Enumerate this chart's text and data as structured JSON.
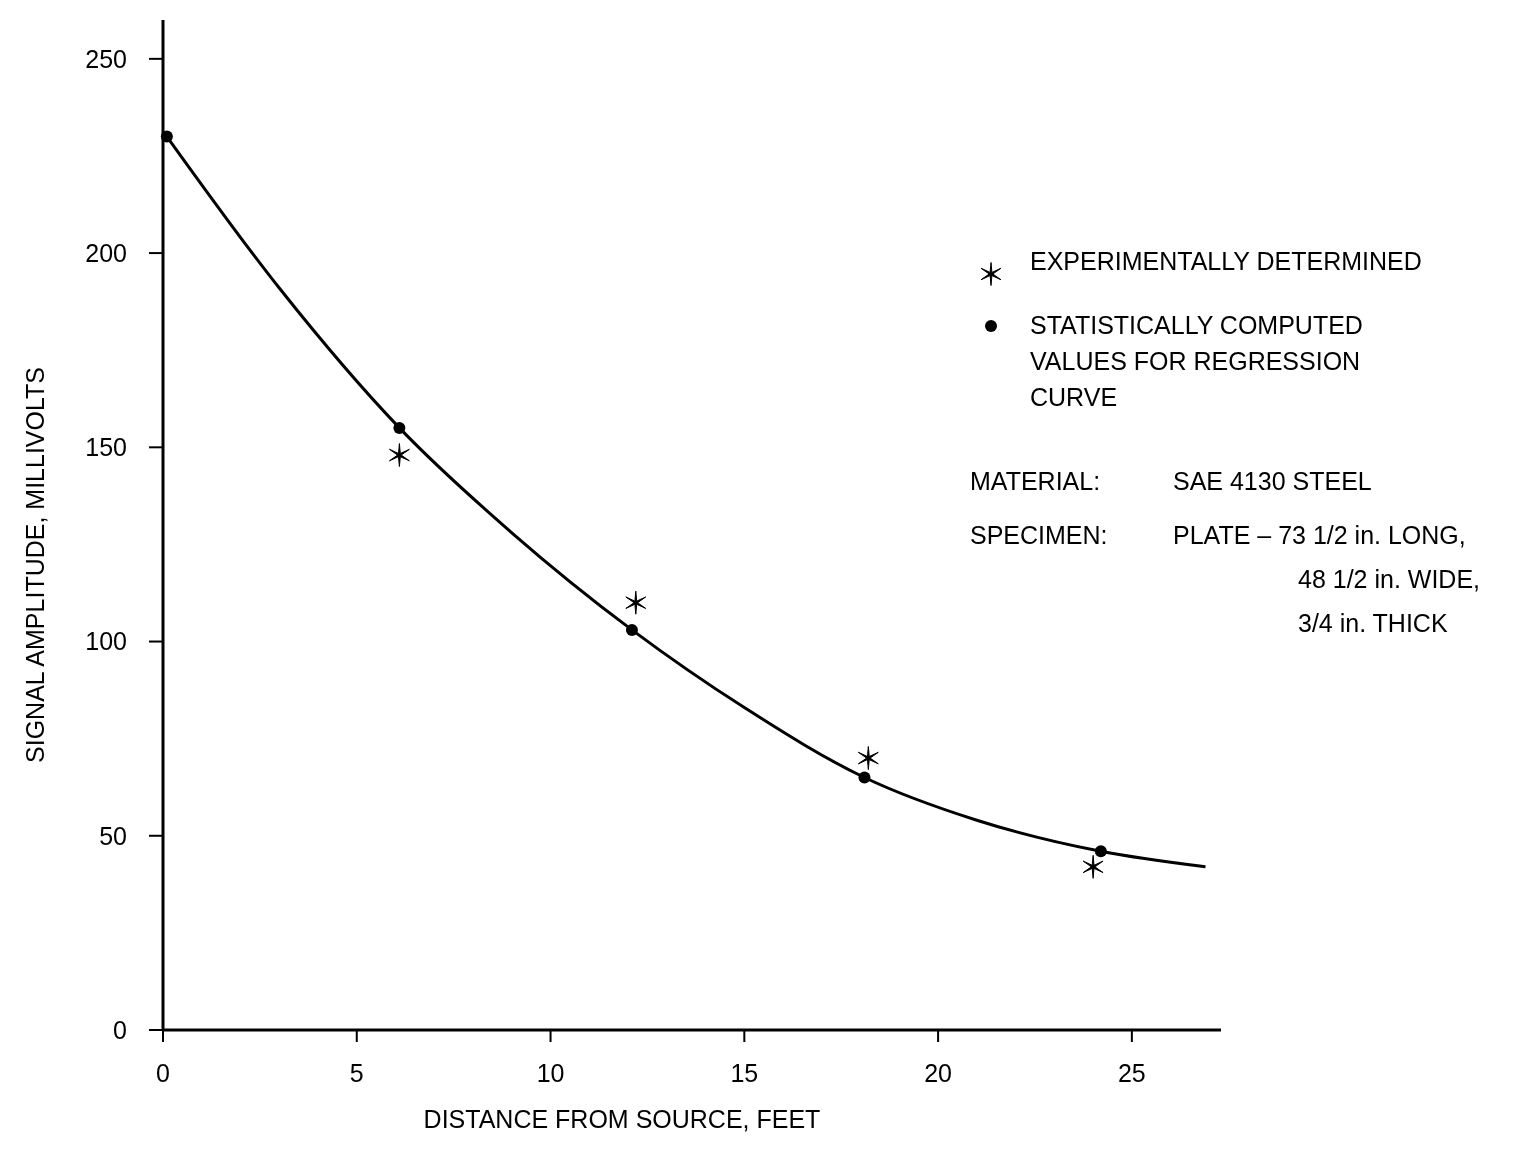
{
  "chart_data": {
    "type": "scatter",
    "xlabel": "DISTANCE FROM SOURCE, FEET",
    "ylabel": "SIGNAL AMPLITUDE, MILLIVOLTS",
    "xlim": [
      0,
      27.3
    ],
    "ylim": [
      0,
      260
    ],
    "xticks": [
      0,
      5,
      10,
      15,
      20,
      25
    ],
    "yticks": [
      0,
      50,
      100,
      150,
      200,
      250
    ],
    "grid": false,
    "legend": "top right",
    "series": [
      {
        "name": "EXPERIMENTALLY DETERMINED",
        "marker": "cross",
        "color": "#000000",
        "x": [
          6.1,
          12.2,
          18.2,
          24.0
        ],
        "values": [
          148,
          110,
          70,
          42
        ]
      },
      {
        "name": "STATISTICALLY COMPUTED VALUES FOR REGRESSION CURVE",
        "marker": "circle",
        "color": "#000000",
        "x": [
          0.1,
          6.1,
          12.1,
          18.1,
          24.2
        ],
        "values": [
          230,
          155,
          103,
          65,
          46
        ]
      },
      {
        "type": "line",
        "marker": "none",
        "line_style": "solid",
        "color": "#000000",
        "x": [
          0.1,
          3,
          6.1,
          9,
          12.1,
          15,
          18.1,
          21,
          24.2,
          26.9
        ],
        "values": [
          230,
          191,
          155,
          128,
          103,
          83,
          65,
          54,
          46,
          42
        ]
      }
    ],
    "annotations": [
      "MATERIAL: SAE 4130 STEEL",
      "SPECIMEN: PLATE – 73 1/2 in. LONG, 48 1/2 in. WIDE, 3/4 in. THICK"
    ]
  }
}
